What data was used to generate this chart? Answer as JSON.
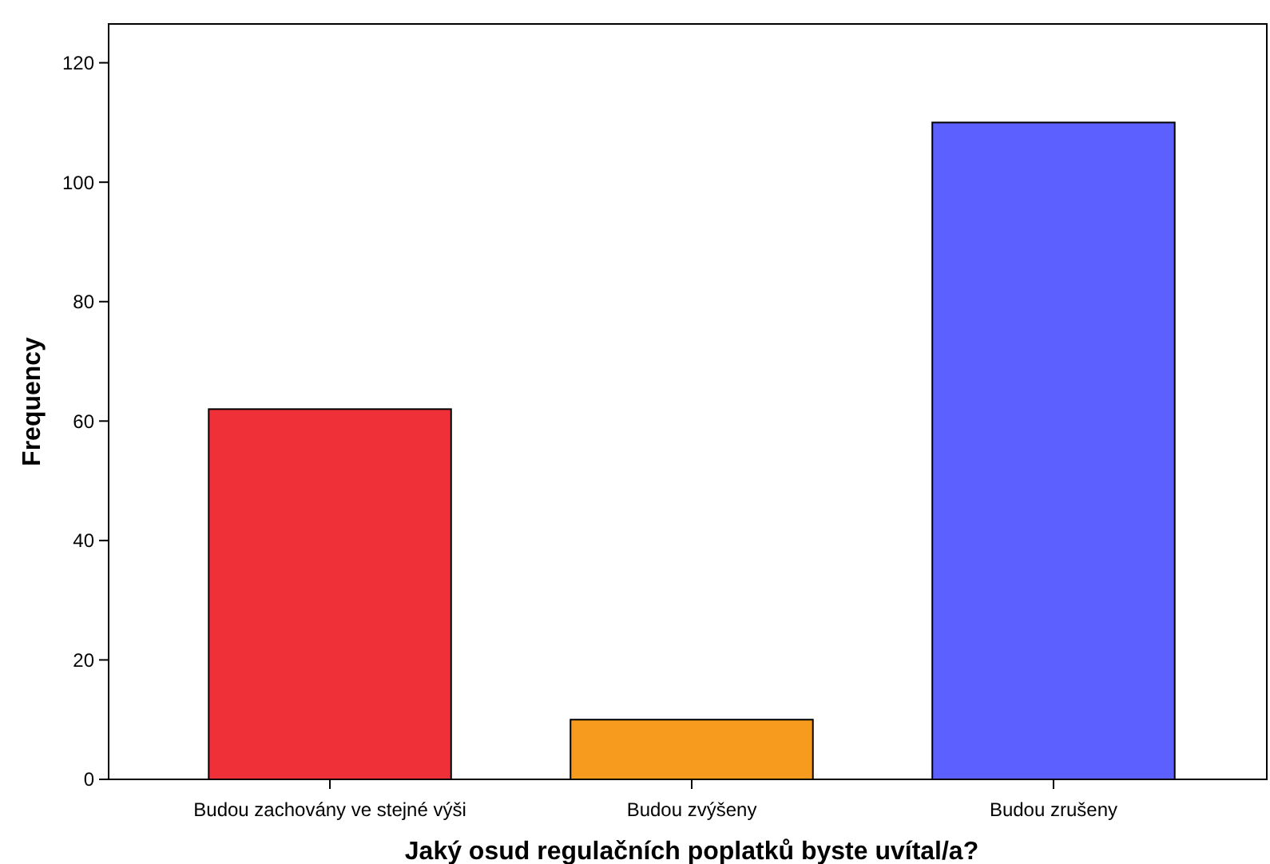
{
  "chart_data": {
    "type": "bar",
    "xlabel": "Jaký osud regulačních poplatků byste uvítal/a?",
    "ylabel": "Frequency",
    "categories": [
      "Budou zachovány ve stejné výši",
      "Budou zvýšeny",
      "Budou zrušeny"
    ],
    "values": [
      62,
      10,
      110
    ],
    "colors": [
      "#ef3039",
      "#f79b1e",
      "#5c60fe"
    ],
    "ylim": [
      0,
      126.5
    ],
    "yticks": [
      0,
      20,
      40,
      60,
      80,
      100,
      120
    ],
    "grid": false
  }
}
